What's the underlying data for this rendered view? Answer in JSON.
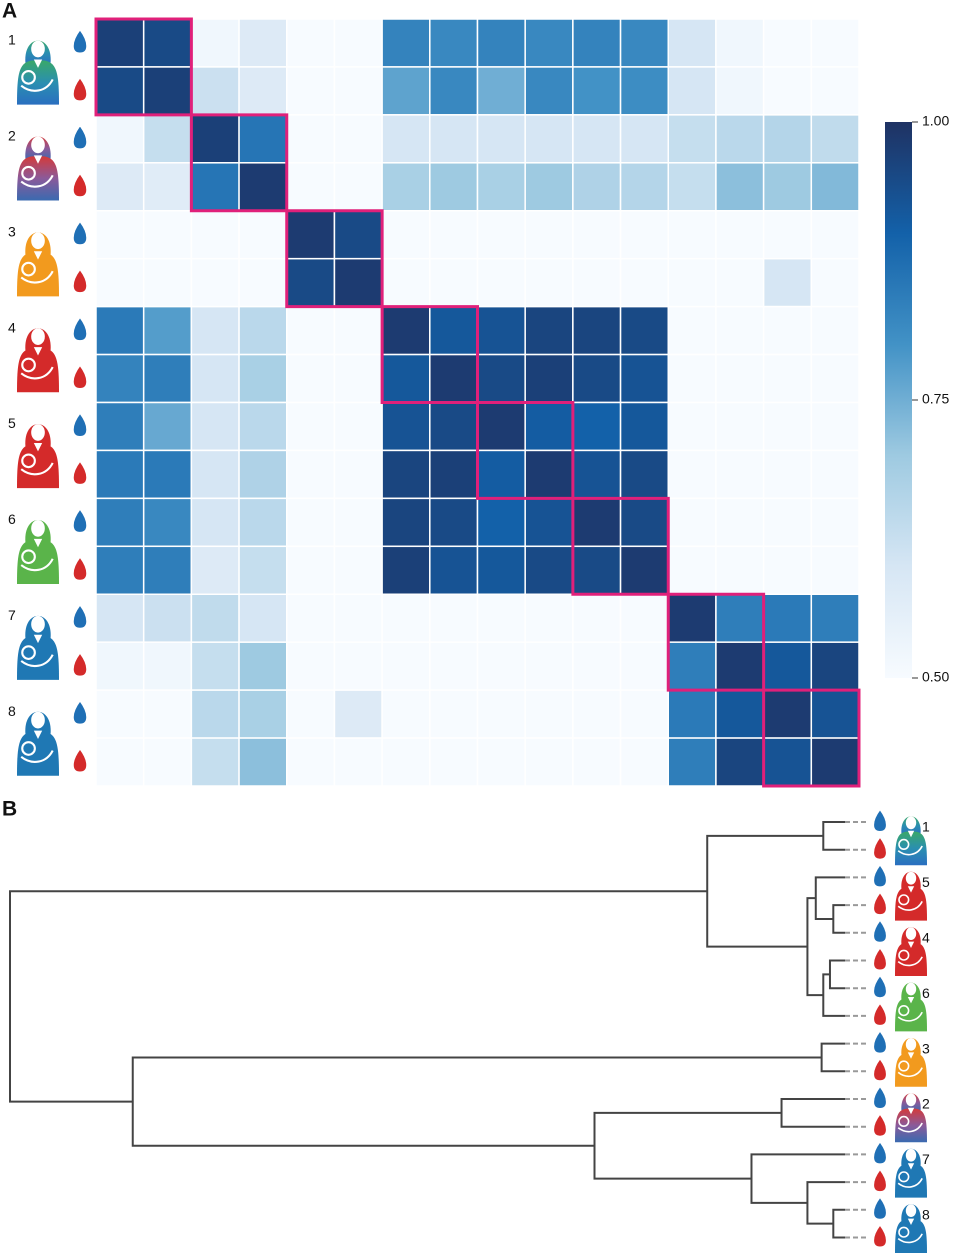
{
  "chart_data": [
    {
      "type": "heatmap",
      "panel_label": "A",
      "y_categories": [
        "1",
        null,
        "2",
        null,
        "3",
        null,
        "4",
        null,
        "5",
        null,
        "6",
        null,
        "7",
        null,
        "8",
        null
      ],
      "values": [
        [
          0.97,
          0.95,
          0.52,
          0.58,
          0.5,
          0.5,
          0.83,
          0.82,
          0.83,
          0.82,
          0.83,
          0.82,
          0.6,
          0.52,
          0.5,
          0.5
        ],
        [
          0.95,
          0.97,
          0.62,
          0.58,
          0.5,
          0.5,
          0.77,
          0.82,
          0.75,
          0.82,
          0.8,
          0.81,
          0.6,
          0.52,
          0.5,
          0.5
        ],
        [
          0.52,
          0.63,
          0.97,
          0.86,
          0.5,
          0.5,
          0.6,
          0.6,
          0.6,
          0.6,
          0.6,
          0.6,
          0.63,
          0.65,
          0.66,
          0.64
        ],
        [
          0.58,
          0.57,
          0.86,
          0.98,
          0.5,
          0.5,
          0.68,
          0.7,
          0.68,
          0.7,
          0.67,
          0.66,
          0.63,
          0.72,
          0.7,
          0.73
        ],
        [
          0.5,
          0.5,
          0.5,
          0.5,
          0.98,
          0.95,
          0.5,
          0.5,
          0.5,
          0.5,
          0.5,
          0.5,
          0.5,
          0.5,
          0.5,
          0.5
        ],
        [
          0.5,
          0.5,
          0.5,
          0.5,
          0.95,
          0.98,
          0.5,
          0.5,
          0.5,
          0.5,
          0.5,
          0.5,
          0.5,
          0.5,
          0.6,
          0.5
        ],
        [
          0.85,
          0.78,
          0.6,
          0.65,
          0.5,
          0.5,
          0.98,
          0.92,
          0.93,
          0.96,
          0.96,
          0.95,
          0.5,
          0.5,
          0.5,
          0.5
        ],
        [
          0.83,
          0.84,
          0.6,
          0.68,
          0.5,
          0.5,
          0.92,
          0.98,
          0.95,
          0.97,
          0.95,
          0.93,
          0.5,
          0.5,
          0.5,
          0.5
        ],
        [
          0.84,
          0.76,
          0.6,
          0.65,
          0.5,
          0.5,
          0.93,
          0.95,
          0.98,
          0.91,
          0.9,
          0.92,
          0.5,
          0.5,
          0.5,
          0.5
        ],
        [
          0.85,
          0.85,
          0.6,
          0.67,
          0.5,
          0.5,
          0.96,
          0.97,
          0.91,
          0.98,
          0.93,
          0.95,
          0.5,
          0.5,
          0.5,
          0.5
        ],
        [
          0.84,
          0.82,
          0.6,
          0.65,
          0.5,
          0.5,
          0.96,
          0.95,
          0.9,
          0.93,
          0.98,
          0.95,
          0.5,
          0.5,
          0.5,
          0.5
        ],
        [
          0.84,
          0.84,
          0.58,
          0.63,
          0.5,
          0.5,
          0.97,
          0.93,
          0.92,
          0.95,
          0.95,
          0.98,
          0.5,
          0.5,
          0.5,
          0.5
        ],
        [
          0.6,
          0.62,
          0.64,
          0.6,
          0.5,
          0.5,
          0.5,
          0.5,
          0.5,
          0.5,
          0.5,
          0.5,
          0.98,
          0.84,
          0.85,
          0.84
        ],
        [
          0.52,
          0.52,
          0.63,
          0.7,
          0.5,
          0.5,
          0.5,
          0.5,
          0.5,
          0.5,
          0.5,
          0.5,
          0.84,
          0.98,
          0.92,
          0.96
        ],
        [
          0.5,
          0.5,
          0.65,
          0.68,
          0.5,
          0.58,
          0.5,
          0.5,
          0.5,
          0.5,
          0.5,
          0.5,
          0.85,
          0.92,
          0.98,
          0.93
        ],
        [
          0.5,
          0.5,
          0.63,
          0.72,
          0.5,
          0.5,
          0.5,
          0.5,
          0.5,
          0.5,
          0.5,
          0.5,
          0.84,
          0.96,
          0.93,
          0.98
        ]
      ],
      "colors": [
        "#f7fbff",
        "#d6e6f4",
        "#9ecae1",
        "#4292c6",
        "#1361a9",
        "#1f3263"
      ],
      "zlim": [
        0.5,
        1.0
      ],
      "zticks": [
        {
          "value": 0.5,
          "label": "0.50"
        },
        {
          "value": 0.75,
          "label": "0.75"
        },
        {
          "value": 1.0,
          "label": "1.00"
        }
      ]
    },
    {
      "type": "dendrogram",
      "panel_label": "B",
      "leaves": [
        "1",
        null,
        "5",
        null,
        "4",
        null,
        "6",
        null,
        "3",
        null,
        "2",
        null,
        "7",
        null,
        "8",
        null
      ],
      "merges": [
        [
          0,
          1,
          0.026
        ],
        [
          3,
          4,
          0.014
        ],
        [
          5,
          6,
          0.018
        ],
        [
          18,
          7,
          0.026
        ],
        [
          2,
          17,
          0.035
        ],
        [
          20,
          19,
          0.045
        ],
        [
          16,
          21,
          0.165
        ],
        [
          8,
          9,
          0.028
        ],
        [
          10,
          11,
          0.076
        ],
        [
          14,
          15,
          0.014
        ],
        [
          13,
          25,
          0.045
        ],
        [
          12,
          26,
          0.112
        ],
        [
          24,
          27,
          0.3
        ],
        [
          23,
          28,
          0.853
        ],
        [
          22,
          29,
          1.0
        ]
      ]
    }
  ]
}
